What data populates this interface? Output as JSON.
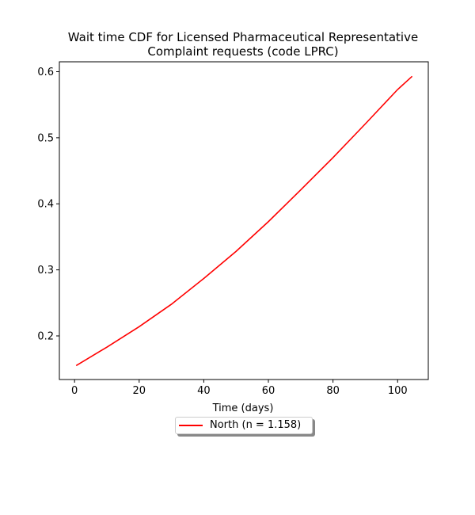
{
  "chart_data": {
    "type": "line",
    "title_lines": [
      "Wait time CDF for Licensed Pharmaceutical Representative",
      "Complaint  requests (code LPRC)"
    ],
    "xlabel": "Time (days)",
    "ylabel": "",
    "xlim": [
      -4.7,
      109.5
    ],
    "ylim": [
      0.134,
      0.615
    ],
    "xticks": [
      0,
      20,
      40,
      60,
      80,
      100
    ],
    "yticks": [
      0.2,
      0.3,
      0.4,
      0.5,
      0.6
    ],
    "grid": false,
    "legend_position": "bottom-center",
    "series": [
      {
        "name": "North (n = 1.158)",
        "color": "#ff0000",
        "x": [
          0.5,
          10,
          20,
          30,
          40,
          50,
          60,
          70,
          80,
          90,
          100,
          104.5
        ],
        "y": [
          0.155,
          0.183,
          0.214,
          0.248,
          0.287,
          0.328,
          0.373,
          0.421,
          0.47,
          0.521,
          0.573,
          0.593
        ]
      }
    ]
  }
}
